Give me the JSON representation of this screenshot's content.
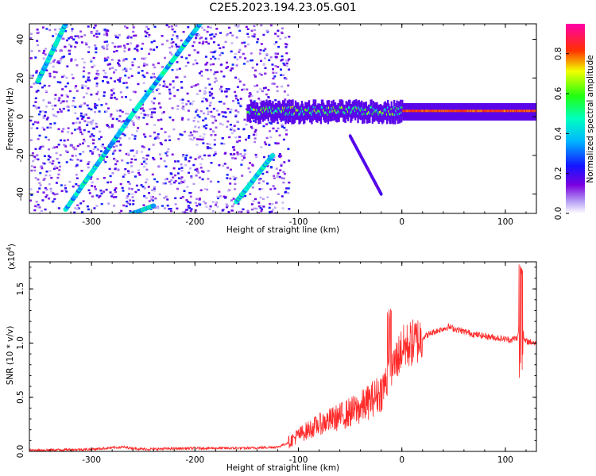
{
  "title": "C2E5.2023.194.23.05.G01",
  "colors": {
    "snr_line": "#ff2a2a",
    "spectrogram_low": "#8a2be2",
    "frame": "#000000"
  },
  "chart_data": [
    {
      "name": "spectrogram",
      "type": "heatmap",
      "xlabel": "Height of straight line (km)",
      "ylabel": "Frequency (Hz)",
      "xlim": [
        -360,
        130
      ],
      "ylim": [
        -50,
        48
      ],
      "x_ticks": [
        -300,
        -200,
        -100,
        0,
        100
      ],
      "y_ticks": [
        -40,
        -20,
        0,
        20,
        40
      ],
      "colorbar": {
        "label": "Normalized spectral amplitude",
        "range": [
          0.0,
          0.95
        ],
        "ticks": [
          "0.0",
          "0.2",
          "0.4",
          "0.6",
          "0.8"
        ],
        "tick_values": [
          0.0,
          0.2,
          0.4,
          0.6,
          0.8
        ],
        "colormap": "rainbow (white → violet → blue → cyan → green → yellow → red → magenta)"
      },
      "features": [
        {
          "description": "diagonal streak",
          "from": [
            -352,
            18
          ],
          "to": [
            -325,
            48
          ]
        },
        {
          "description": "diagonal streak",
          "from": [
            -325,
            -48
          ],
          "to": [
            -262,
            0
          ]
        },
        {
          "description": "diagonal streak",
          "from": [
            -265,
            -2
          ],
          "to": [
            -195,
            48
          ]
        },
        {
          "description": "diagonal streak",
          "from": [
            -270,
            -52
          ],
          "to": [
            -240,
            -46
          ]
        },
        {
          "description": "diagonal streak",
          "from": [
            -160,
            -44
          ],
          "to": [
            -125,
            -20
          ]
        },
        {
          "description": "carrier line near 0 Hz",
          "x_range": [
            -150,
            130
          ],
          "y": 2
        },
        {
          "description": "faint tail",
          "from": [
            -50,
            -10
          ],
          "to": [
            -20,
            -40
          ]
        }
      ]
    },
    {
      "name": "snr",
      "type": "line",
      "xlabel": "Height of straight line (km)",
      "ylabel": "SNR (10 * v/v)",
      "exponent_label": "(x10",
      "exponent_power": "4",
      "exponent_close": ")",
      "xlim": [
        -360,
        130
      ],
      "ylim": [
        0,
        1.75
      ],
      "x_ticks": [
        -300,
        -200,
        -100,
        0,
        100
      ],
      "y_ticks": [
        "0.0",
        "0.5",
        "1.0",
        "1.5"
      ],
      "y_tick_values": [
        0.0,
        0.5,
        1.0,
        1.5
      ],
      "series": [
        {
          "name": "SNR",
          "x": [
            -360,
            -300,
            -270,
            -250,
            -200,
            -150,
            -120,
            -110,
            -100,
            -80,
            -60,
            -40,
            -20,
            -10,
            0,
            20,
            30,
            45,
            55,
            70,
            90,
            105,
            112,
            115,
            118,
            130
          ],
          "y": [
            0.01,
            0.02,
            0.04,
            0.02,
            0.03,
            0.03,
            0.04,
            0.08,
            0.15,
            0.25,
            0.32,
            0.4,
            0.55,
            0.75,
            0.95,
            1.05,
            1.1,
            1.15,
            1.12,
            1.08,
            1.05,
            1.03,
            1.05,
            1.4,
            1.02,
            1.0
          ]
        }
      ],
      "annotations": [
        {
          "x": -12,
          "y": 1.33,
          "text": ""
        },
        {
          "x": 116,
          "y": 1.75,
          "text": ""
        }
      ]
    }
  ]
}
